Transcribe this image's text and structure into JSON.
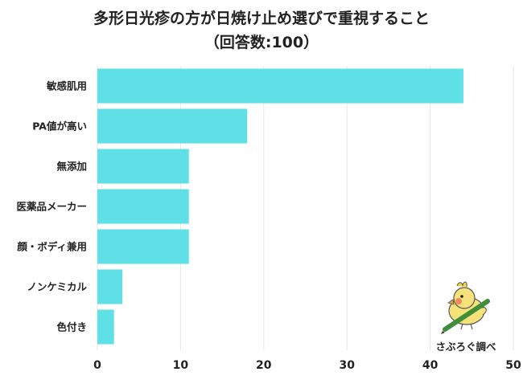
{
  "chart_data": {
    "type": "bar",
    "orientation": "horizontal",
    "title_lines": [
      "多形日光疹の方が日焼け止め選びで重視すること",
      "（回答数:100）"
    ],
    "categories": [
      "敏感肌用",
      "PA値が高い",
      "無添加",
      "医薬品メーカー",
      "顔・ボディ兼用",
      "ノンケミカル",
      "色付き"
    ],
    "values": [
      44,
      18,
      11,
      11,
      11,
      3,
      2
    ],
    "xlim": [
      0,
      50
    ],
    "xticks": [
      0,
      10,
      20,
      30,
      40,
      50
    ],
    "grid": true,
    "bar_color": "#5ee0e6",
    "grid_color": "#e6e6e6"
  },
  "logo": {
    "text": "さぶろぐ調べ"
  }
}
